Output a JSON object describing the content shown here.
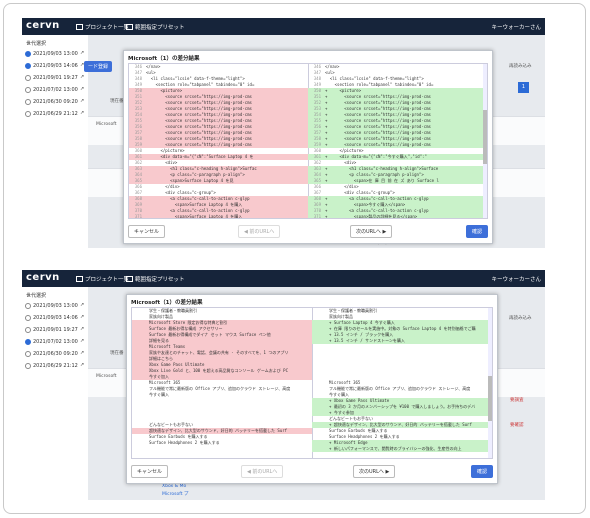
{
  "header": {
    "logo": "cervn",
    "nav_projects": "プロジェクト一覧",
    "nav_presets": "範囲指定プリセット",
    "user": "キーウォーカーさん"
  },
  "sidebar": {
    "title": "世代選択",
    "items": [
      {
        "date": "2021/09/03 13:00"
      },
      {
        "date": "2021/09/03 14:06"
      },
      {
        "date": "2021/09/01 19:27"
      },
      {
        "date": "2021/07/02 13:00"
      },
      {
        "date": "2021/06/30 09:20"
      },
      {
        "date": "2021/06/29 21:12"
      }
    ]
  },
  "background": {
    "blue_button": "ード登録",
    "label": "現在番",
    "row_text": "Microsoft",
    "reload": "再読み込み",
    "page": "1",
    "footer_link": "Xbox & Mo",
    "footer_link2": "Microsoft プ",
    "date_text": "2021/09/03 14:06",
    "tag1": "要調査",
    "tag2": "要確認"
  },
  "screens": [
    {
      "modal_title": "Microsoft（1）の差分結果",
      "left_lines": [
        {
          "no": "346",
          "text": "</nav>",
          "kind": ""
        },
        {
          "no": "347",
          "text": "<ul>",
          "kind": ""
        },
        {
          "no": "348",
          "text": "  <li class=\"lcsie\" data-f-theme=\"light\">",
          "kind": ""
        },
        {
          "no": "349",
          "text": "    <section role=\"tabpanel\" tabindex=\"0\" id=",
          "kind": ""
        },
        {
          "no": "350",
          "text": "      <picture>",
          "kind": "del"
        },
        {
          "no": "351",
          "text": "        <source srcset=\"https://img-prod-cms",
          "kind": "del"
        },
        {
          "no": "352",
          "text": "        <source srcset=\"https://img-prod-cms",
          "kind": "del"
        },
        {
          "no": "353",
          "text": "        <source srcset=\"https://img-prod-cms",
          "kind": "del"
        },
        {
          "no": "354",
          "text": "        <source srcset=\"https://img-prod-cms",
          "kind": "del"
        },
        {
          "no": "355",
          "text": "        <source srcset=\"https://img-prod-cms",
          "kind": "del"
        },
        {
          "no": "356",
          "text": "        <source srcset=\"https://img-prod-cms",
          "kind": "del"
        },
        {
          "no": "357",
          "text": "        <source srcset=\"https://img-prod-cms",
          "kind": "del"
        },
        {
          "no": "358",
          "text": "        <source srcset=\"https://img-prod-cms",
          "kind": "del"
        },
        {
          "no": "359",
          "text": "        <source srcset=\"https://img-prod-cms",
          "kind": "del"
        },
        {
          "no": "360",
          "text": "      </picture>",
          "kind": ""
        },
        {
          "no": "361",
          "text": "      <div data-m=\"{\"cN\":\"Surface Laptop 4 を",
          "kind": "del"
        },
        {
          "no": "362",
          "text": "        <div>",
          "kind": ""
        },
        {
          "no": "363",
          "text": "          <h1 class=\"c-heading h-align\">Surfac",
          "kind": "del"
        },
        {
          "no": "364",
          "text": "          <p class=\"c-paragraph p-align\">",
          "kind": "del"
        },
        {
          "no": "365",
          "text": "          <span>Surface Laptop 4 を見",
          "kind": "del"
        },
        {
          "no": "366",
          "text": "        </div>",
          "kind": ""
        },
        {
          "no": "367",
          "text": "        <div class=\"c-group\">",
          "kind": ""
        },
        {
          "no": "368",
          "text": "          <a class=\"c-call-to-action c-glyp",
          "kind": "del"
        },
        {
          "no": "369",
          "text": "            <span>Surface Laptop 4 を購入",
          "kind": "del"
        },
        {
          "no": "370",
          "text": "          <a class=\"c-call-to-action c-glyp",
          "kind": "del"
        },
        {
          "no": "371",
          "text": "            <span>Surface Laptop 4 を購入",
          "kind": "del"
        }
      ],
      "right_lines": [
        {
          "no": "346",
          "text": "</nav>",
          "kind": ""
        },
        {
          "no": "347",
          "text": "<ul>",
          "kind": ""
        },
        {
          "no": "348",
          "text": "  <li class=\"lcsie\" data-f-theme=\"light\">",
          "kind": ""
        },
        {
          "no": "349",
          "text": "    <section role=\"tabpanel\" tabindex=\"0\" id=",
          "kind": ""
        },
        {
          "no": "350",
          "text": "+     <picture>",
          "kind": "add"
        },
        {
          "no": "351",
          "text": "+       <source srcset=\"https://img-prod-cms",
          "kind": "add"
        },
        {
          "no": "352",
          "text": "+       <source srcset=\"https://img-prod-cms",
          "kind": "add"
        },
        {
          "no": "353",
          "text": "+       <source srcset=\"https://img-prod-cms",
          "kind": "add"
        },
        {
          "no": "354",
          "text": "+       <source srcset=\"https://img-prod-cms",
          "kind": "add"
        },
        {
          "no": "355",
          "text": "+       <source srcset=\"https://img-prod-cms",
          "kind": "add"
        },
        {
          "no": "356",
          "text": "+       <source srcset=\"https://img-prod-cms",
          "kind": "add"
        },
        {
          "no": "357",
          "text": "+       <source srcset=\"https://img-prod-cms",
          "kind": "add"
        },
        {
          "no": "358",
          "text": "+       <source srcset=\"https://img-prod-cms",
          "kind": "add"
        },
        {
          "no": "359",
          "text": "+       <source srcset=\"https://img-prod-cms",
          "kind": "add"
        },
        {
          "no": "360",
          "text": "      </picture>",
          "kind": ""
        },
        {
          "no": "361",
          "text": "+     <div data-m=\"{\"cN\":\"今すぐ購入\",\"id\":\"",
          "kind": "add"
        },
        {
          "no": "362",
          "text": "        <div>",
          "kind": ""
        },
        {
          "no": "363",
          "text": "+         <h1 class=\"c-heading h-align\">Surface",
          "kind": "add"
        },
        {
          "no": "364",
          "text": "+         <p class=\"c-paragraph p-align\">",
          "kind": "add"
        },
        {
          "no": "365",
          "text": "+           <span>在 庫 目 前 在 ズ あり Surface l",
          "kind": "add"
        },
        {
          "no": "366",
          "text": "        </div>",
          "kind": ""
        },
        {
          "no": "367",
          "text": "        <div class=\"c-group\">",
          "kind": ""
        },
        {
          "no": "368",
          "text": "+         <a class=\"c-call-to-action c-glyp",
          "kind": "add"
        },
        {
          "no": "369",
          "text": "+           <span>今すぐ購入</span>",
          "kind": "add"
        },
        {
          "no": "370",
          "text": "+         <a class=\"c-call-to-action c-glyp",
          "kind": "add"
        },
        {
          "no": "371",
          "text": "+           <span>製品の詳細を見る</span>",
          "kind": "add"
        }
      ],
      "cancel": "キャンセル",
      "prev": "◀ 前のURLへ",
      "next": "次のURLへ ▶",
      "confirm": "確認"
    },
    {
      "modal_title": "Microsoft（1）の差分結果",
      "left_lines": [
        {
          "no": "",
          "text": "学生・保護者・教職員割引",
          "kind": ""
        },
        {
          "no": "",
          "text": "家族向け製品",
          "kind": ""
        },
        {
          "no": "",
          "text": "Microsoft Store 限定お得な特典と割引",
          "kind": "del"
        },
        {
          "no": "",
          "text": "Surface 最新お得な構成 アクセサリー",
          "kind": "del"
        },
        {
          "no": "",
          "text": "Surface 最新お得構成でダイナ セット マウス Surface ペン他",
          "kind": "del"
        },
        {
          "no": "",
          "text": "詳細を見る",
          "kind": "del"
        },
        {
          "no": "",
          "text": "Microsoft Teams",
          "kind": "del"
        },
        {
          "no": "",
          "text": "家族や友達とのチャット、電話、会議の共有 - そのすべてを、1 つのアプリ",
          "kind": "del"
        },
        {
          "no": "",
          "text": "詳細はこちら",
          "kind": "del"
        },
        {
          "no": "",
          "text": "Xbox Game Pass Ultimate",
          "kind": "del"
        },
        {
          "no": "",
          "text": "Xbox Live Gold と、100 を超える高品質なコンソール ゲームおよび PC",
          "kind": "del"
        },
        {
          "no": "",
          "text": "今すぐ加入",
          "kind": "del"
        },
        {
          "no": "",
          "text": "Microsoft 365",
          "kind": ""
        },
        {
          "no": "",
          "text": "フル機能で常に最新版の Office アプリ、追加のクラウド ストレージ、高度",
          "kind": ""
        },
        {
          "no": "",
          "text": "今すぐ購入",
          "kind": ""
        },
        {
          "no": "",
          "text": "",
          "kind": ""
        },
        {
          "no": "",
          "text": "",
          "kind": ""
        },
        {
          "no": "",
          "text": "",
          "kind": ""
        },
        {
          "no": "",
          "text": "",
          "kind": ""
        },
        {
          "no": "",
          "text": "どんなビートもお手ない",
          "kind": ""
        },
        {
          "no": "",
          "text": "超快適なデザイン、比大型のサウンド、好日的 バッテリーを搭載した Surf",
          "kind": "del"
        },
        {
          "no": "",
          "text": "Surface Earbuds を購入する",
          "kind": ""
        },
        {
          "no": "",
          "text": "Surface Headphones 2 を購入する",
          "kind": ""
        },
        {
          "no": "",
          "text": "",
          "kind": ""
        },
        {
          "no": "",
          "text": "",
          "kind": ""
        },
        {
          "no": "",
          "text": "",
          "kind": ""
        }
      ],
      "right_lines": [
        {
          "no": "",
          "text": "学生・保護者・教職員割引",
          "kind": ""
        },
        {
          "no": "",
          "text": "家族向け製品",
          "kind": ""
        },
        {
          "no": "",
          "text": "+ Surface Laptop 4 今すぐ購入",
          "kind": "add"
        },
        {
          "no": "",
          "text": "+ 在庫 限りのセールを実施中。対象の Surface Laptop 4 を特別価格でご購",
          "kind": "add"
        },
        {
          "no": "",
          "text": "+ 13.5 インチ / ブラックを購入",
          "kind": "add"
        },
        {
          "no": "",
          "text": "+ 13.5 インチ / サンドストーンを購入",
          "kind": "add"
        },
        {
          "no": "",
          "text": "",
          "kind": ""
        },
        {
          "no": "",
          "text": "",
          "kind": ""
        },
        {
          "no": "",
          "text": "",
          "kind": ""
        },
        {
          "no": "",
          "text": "",
          "kind": ""
        },
        {
          "no": "",
          "text": "",
          "kind": ""
        },
        {
          "no": "",
          "text": "",
          "kind": ""
        },
        {
          "no": "",
          "text": "Microsoft 365",
          "kind": ""
        },
        {
          "no": "",
          "text": "フル機能で常に最新版の Office アプリ、追加のクラウド ストレージ、高度",
          "kind": ""
        },
        {
          "no": "",
          "text": "今すぐ購入",
          "kind": ""
        },
        {
          "no": "",
          "text": "+ Xbox Game Pass Ultimate",
          "kind": "add"
        },
        {
          "no": "",
          "text": "+ 最初の 3 か月のメンバーシップを ¥100 で購入しましょう。お手持ちのデバ",
          "kind": "add"
        },
        {
          "no": "",
          "text": "+ 今すぐ参加",
          "kind": "add"
        },
        {
          "no": "",
          "text": "どんなビートもお手ない",
          "kind": ""
        },
        {
          "no": "",
          "text": "+ 超快適なデザイン、比大型のサウンド、好日的 バッテリーを搭載した Surf",
          "kind": "add"
        },
        {
          "no": "",
          "text": "Surface Earbuds を購入する",
          "kind": ""
        },
        {
          "no": "",
          "text": "Surface Headphones 2 を購入する",
          "kind": ""
        },
        {
          "no": "",
          "text": "+ Microsoft Edge",
          "kind": "add"
        },
        {
          "no": "",
          "text": "+ 新しいパフォーマンスで、閲覧時のプライバシーの強化、生産性の向上",
          "kind": "add"
        },
        {
          "no": "",
          "text": "",
          "kind": ""
        },
        {
          "no": "",
          "text": "",
          "kind": ""
        }
      ],
      "cancel": "キャンセル",
      "prev": "◀ 前のURLへ",
      "next": "次のURLへ ▶",
      "confirm": "確認"
    }
  ],
  "colors": {
    "topbar": "#16243a",
    "accent": "#3d6fd9",
    "deleted": "#f8c9cd",
    "added": "#c9f2c9"
  }
}
